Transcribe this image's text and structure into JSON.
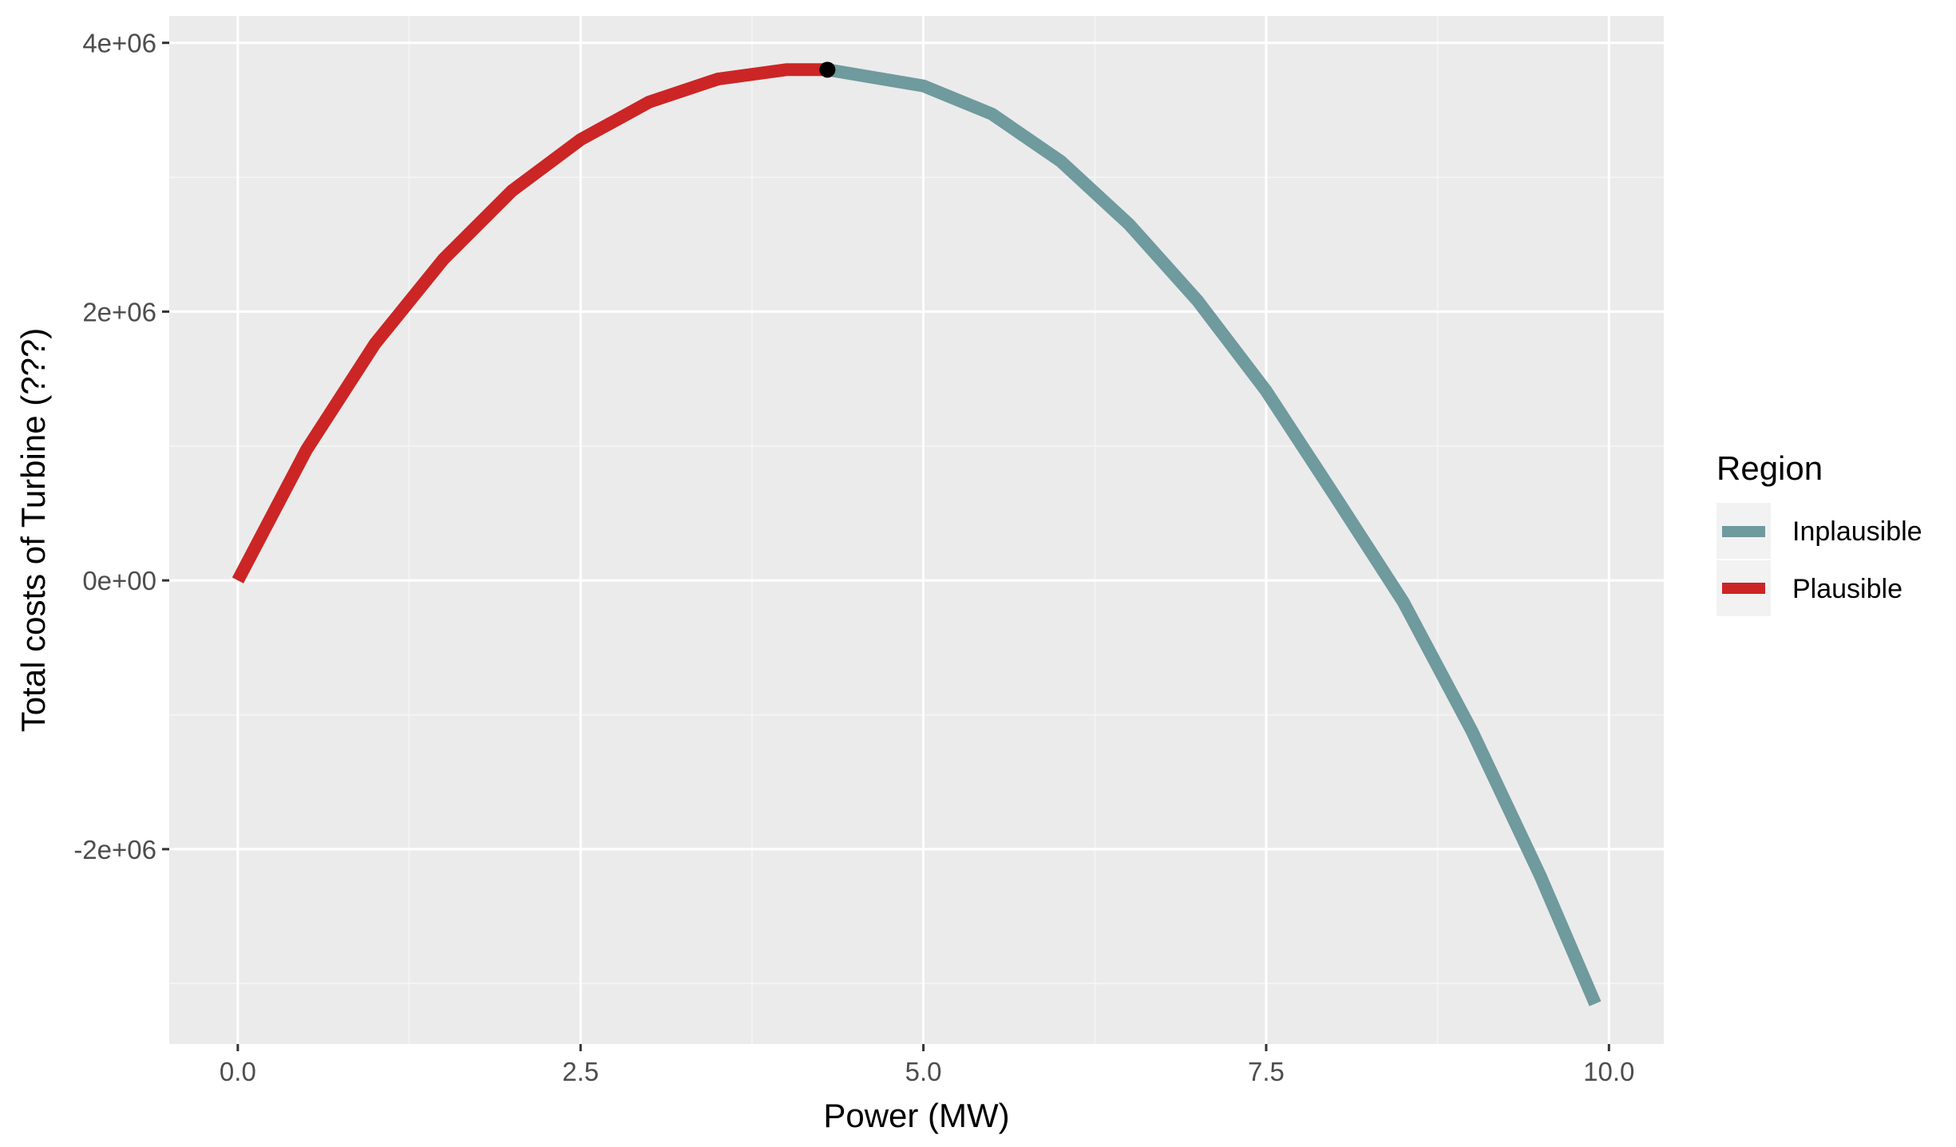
{
  "chart_data": {
    "type": "line",
    "xlabel": "Power (MW)",
    "ylabel": "Total costs of Turbine (???)",
    "xlim": [
      -0.5,
      10.4
    ],
    "ylim": [
      -3450000,
      4200000
    ],
    "x_ticks": [
      0.0,
      2.5,
      5.0,
      7.5,
      10.0
    ],
    "x_tick_labels": [
      "0.0",
      "2.5",
      "5.0",
      "7.5",
      "10.0"
    ],
    "y_ticks": [
      -2000000,
      0,
      2000000,
      4000000
    ],
    "y_tick_labels": [
      "-2e+06",
      "0e+00",
      "2e+06",
      "4e+06"
    ],
    "grid": true,
    "legend": {
      "title": "Region",
      "position": "right",
      "entries": [
        {
          "label": "Inplausible",
          "color": "#6f9a9e"
        },
        {
          "label": "Plausible",
          "color": "#cc2525"
        }
      ]
    },
    "series": [
      {
        "name": "Plausible",
        "color": "#cc2525",
        "x": [
          0.0,
          0.5,
          1.0,
          1.5,
          2.0,
          2.5,
          3.0,
          3.5,
          4.0,
          4.3
        ],
        "y": [
          0,
          970000,
          1760000,
          2390000,
          2900000,
          3280000,
          3560000,
          3730000,
          3800000,
          3800000
        ]
      },
      {
        "name": "Inplausible",
        "color": "#6f9a9e",
        "x": [
          4.3,
          5.0,
          5.5,
          6.0,
          6.5,
          7.0,
          7.5,
          8.0,
          8.5,
          9.0,
          9.5,
          9.9
        ],
        "y": [
          3800000,
          3680000,
          3470000,
          3120000,
          2650000,
          2080000,
          1410000,
          630000,
          -160000,
          -1120000,
          -2200000,
          -3150000
        ]
      }
    ],
    "highlight_point": {
      "x": 4.3,
      "y": 3800000
    },
    "colors": {
      "panel_background": "#ebebeb",
      "grid_major": "#ffffff",
      "grid_minor": "#f5f5f5",
      "point": "#000000"
    }
  }
}
